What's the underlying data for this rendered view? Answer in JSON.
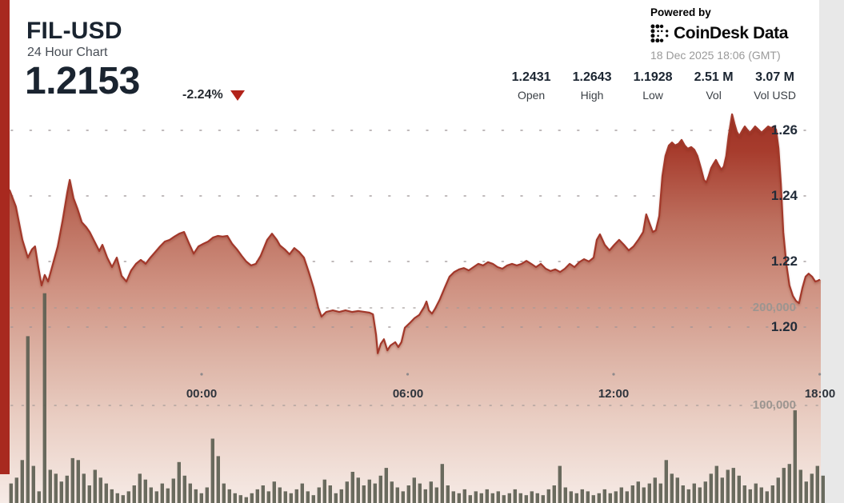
{
  "header": {
    "symbol": "FIL-USD",
    "subtitle": "24 Hour Chart",
    "price": "1.2153",
    "change": "-2.24%",
    "change_direction": "down"
  },
  "powered_by": {
    "label": "Powered by",
    "brand": "CoinDesk Data",
    "timestamp": "18 Dec 2025 18:06 (GMT)"
  },
  "stats": [
    {
      "value": "1.2431",
      "label": "Open"
    },
    {
      "value": "1.2643",
      "label": "High"
    },
    {
      "value": "1.1928",
      "label": "Low"
    },
    {
      "value": "2.51 M",
      "label": "Vol"
    },
    {
      "value": "3.07 M",
      "label": "Vol USD"
    }
  ],
  "colors": {
    "accent_red": "#a8291f",
    "line_red": "#a2372a",
    "triangle_red": "#b2231a",
    "volume_bar": "#5d6053",
    "title_navy": "#1a2430",
    "muted_gray": "#9a9a9a",
    "fill_top": "#9d3124",
    "fill_bottom": "#f6ebe6"
  },
  "chart_data": {
    "type": "area",
    "title": "FIL-USD 24 Hour Chart",
    "time_basis": "hours relative to 00:00 GMT 18 Dec 2025 (negative = 17 Dec)",
    "x_axis": {
      "ticks": [
        {
          "t": 0,
          "label": "00:00"
        },
        {
          "t": 6,
          "label": "06:00"
        },
        {
          "t": 12,
          "label": "12:00"
        },
        {
          "t": 18,
          "label": "18:00"
        }
      ],
      "range_hours": [
        -5.6,
        18.0
      ]
    },
    "y_axis_price": {
      "ticks": [
        "1.26",
        "1.24",
        "1.22",
        "1.20"
      ],
      "range": [
        1.186,
        1.268
      ],
      "grid": "dotted"
    },
    "y_axis_volume": {
      "ticks": [
        "200,000",
        "100,000"
      ],
      "tick_values": [
        200000,
        100000
      ],
      "range": [
        0,
        400000
      ]
    },
    "summary": {
      "open": 1.2431,
      "high": 1.2643,
      "low": 1.1928,
      "vol": "2.51 M",
      "vol_usd": "3.07 M",
      "last": 1.2153,
      "change_pct": -2.24
    },
    "price_series": {
      "name": "FIL-USD price",
      "points": [
        [
          -5.59,
          1.2417
        ],
        [
          -5.41,
          1.2368
        ],
        [
          -5.22,
          1.2266
        ],
        [
          -5.06,
          1.2212
        ],
        [
          -4.94,
          1.2237
        ],
        [
          -4.85,
          1.2246
        ],
        [
          -4.75,
          1.218
        ],
        [
          -4.66,
          1.2127
        ],
        [
          -4.57,
          1.2159
        ],
        [
          -4.47,
          1.2139
        ],
        [
          -4.33,
          1.2193
        ],
        [
          -4.19,
          1.2246
        ],
        [
          -4.05,
          1.2324
        ],
        [
          -3.91,
          1.2412
        ],
        [
          -3.84,
          1.2449
        ],
        [
          -3.73,
          1.2393
        ],
        [
          -3.61,
          1.2359
        ],
        [
          -3.49,
          1.232
        ],
        [
          -3.36,
          1.2305
        ],
        [
          -3.26,
          1.229
        ],
        [
          -3.12,
          1.2261
        ],
        [
          -2.98,
          1.2232
        ],
        [
          -2.89,
          1.2251
        ],
        [
          -2.75,
          1.2212
        ],
        [
          -2.61,
          1.2183
        ],
        [
          -2.47,
          1.2212
        ],
        [
          -2.33,
          1.2156
        ],
        [
          -2.19,
          1.2139
        ],
        [
          -2.05,
          1.2173
        ],
        [
          -1.91,
          1.2193
        ],
        [
          -1.77,
          1.2205
        ],
        [
          -1.63,
          1.2193
        ],
        [
          -1.49,
          1.2212
        ],
        [
          -1.35,
          1.2229
        ],
        [
          -1.21,
          1.2246
        ],
        [
          -1.07,
          1.2261
        ],
        [
          -0.93,
          1.2266
        ],
        [
          -0.79,
          1.2276
        ],
        [
          -0.65,
          1.2285
        ],
        [
          -0.51,
          1.229
        ],
        [
          -0.37,
          1.2256
        ],
        [
          -0.23,
          1.2224
        ],
        [
          -0.09,
          1.2246
        ],
        [
          0.05,
          1.2254
        ],
        [
          0.19,
          1.2261
        ],
        [
          0.33,
          1.2273
        ],
        [
          0.47,
          1.2278
        ],
        [
          0.61,
          1.2276
        ],
        [
          0.75,
          1.2278
        ],
        [
          0.89,
          1.2254
        ],
        [
          1.03,
          1.2237
        ],
        [
          1.17,
          1.2217
        ],
        [
          1.3,
          1.22
        ],
        [
          1.44,
          1.2188
        ],
        [
          1.58,
          1.2193
        ],
        [
          1.72,
          1.2217
        ],
        [
          1.91,
          1.2266
        ],
        [
          2.05,
          1.2285
        ],
        [
          2.19,
          1.2266
        ],
        [
          2.28,
          1.2249
        ],
        [
          2.42,
          1.2237
        ],
        [
          2.56,
          1.2222
        ],
        [
          2.7,
          1.2241
        ],
        [
          2.84,
          1.2229
        ],
        [
          2.98,
          1.2212
        ],
        [
          3.12,
          1.2168
        ],
        [
          3.26,
          1.212
        ],
        [
          3.4,
          1.2059
        ],
        [
          3.49,
          1.2032
        ],
        [
          3.63,
          1.2046
        ],
        [
          3.82,
          1.2051
        ],
        [
          4.01,
          1.2046
        ],
        [
          4.19,
          1.2051
        ],
        [
          4.38,
          1.2046
        ],
        [
          4.57,
          1.2049
        ],
        [
          4.75,
          1.2046
        ],
        [
          4.89,
          1.2044
        ],
        [
          4.99,
          1.2039
        ],
        [
          5.08,
          1.1978
        ],
        [
          5.13,
          1.192
        ],
        [
          5.22,
          1.1949
        ],
        [
          5.31,
          1.1963
        ],
        [
          5.41,
          1.1929
        ],
        [
          5.5,
          1.1944
        ],
        [
          5.64,
          1.1954
        ],
        [
          5.73,
          1.1939
        ],
        [
          5.82,
          1.1954
        ],
        [
          5.92,
          1.1998
        ],
        [
          6.06,
          1.2012
        ],
        [
          6.2,
          1.2027
        ],
        [
          6.34,
          1.2037
        ],
        [
          6.48,
          1.2061
        ],
        [
          6.55,
          1.2078
        ],
        [
          6.62,
          1.2051
        ],
        [
          6.71,
          1.2041
        ],
        [
          6.8,
          1.2056
        ],
        [
          6.94,
          1.2085
        ],
        [
          7.08,
          1.212
        ],
        [
          7.22,
          1.2154
        ],
        [
          7.36,
          1.2168
        ],
        [
          7.5,
          1.2176
        ],
        [
          7.64,
          1.218
        ],
        [
          7.78,
          1.2173
        ],
        [
          7.92,
          1.2183
        ],
        [
          8.06,
          1.2193
        ],
        [
          8.2,
          1.2188
        ],
        [
          8.34,
          1.2198
        ],
        [
          8.48,
          1.2193
        ],
        [
          8.62,
          1.2183
        ],
        [
          8.76,
          1.2178
        ],
        [
          8.9,
          1.2188
        ],
        [
          9.04,
          1.2193
        ],
        [
          9.18,
          1.2188
        ],
        [
          9.32,
          1.2193
        ],
        [
          9.46,
          1.2202
        ],
        [
          9.6,
          1.2193
        ],
        [
          9.74,
          1.2183
        ],
        [
          9.88,
          1.2193
        ],
        [
          10.02,
          1.2178
        ],
        [
          10.16,
          1.2171
        ],
        [
          10.3,
          1.2176
        ],
        [
          10.44,
          1.2168
        ],
        [
          10.58,
          1.2178
        ],
        [
          10.72,
          1.2193
        ],
        [
          10.86,
          1.2183
        ],
        [
          11.0,
          1.2198
        ],
        [
          11.14,
          1.2207
        ],
        [
          11.28,
          1.22
        ],
        [
          11.42,
          1.2212
        ],
        [
          11.51,
          1.2266
        ],
        [
          11.6,
          1.2283
        ],
        [
          11.74,
          1.2251
        ],
        [
          11.88,
          1.2234
        ],
        [
          12.02,
          1.2251
        ],
        [
          12.16,
          1.2266
        ],
        [
          12.3,
          1.2251
        ],
        [
          12.44,
          1.2234
        ],
        [
          12.58,
          1.2246
        ],
        [
          12.72,
          1.2266
        ],
        [
          12.86,
          1.229
        ],
        [
          12.95,
          1.2344
        ],
        [
          13.05,
          1.2315
        ],
        [
          13.14,
          1.229
        ],
        [
          13.23,
          1.2295
        ],
        [
          13.33,
          1.2339
        ],
        [
          13.42,
          1.2461
        ],
        [
          13.51,
          1.2522
        ],
        [
          13.61,
          1.2554
        ],
        [
          13.7,
          1.2563
        ],
        [
          13.79,
          1.2554
        ],
        [
          13.89,
          1.2559
        ],
        [
          13.98,
          1.2571
        ],
        [
          14.07,
          1.2554
        ],
        [
          14.16,
          1.2544
        ],
        [
          14.26,
          1.2549
        ],
        [
          14.35,
          1.2541
        ],
        [
          14.44,
          1.2522
        ],
        [
          14.54,
          1.2485
        ],
        [
          14.63,
          1.2449
        ],
        [
          14.7,
          1.2441
        ],
        [
          14.77,
          1.2461
        ],
        [
          14.84,
          1.2485
        ],
        [
          14.91,
          1.2498
        ],
        [
          14.98,
          1.251
        ],
        [
          15.05,
          1.2495
        ],
        [
          15.14,
          1.248
        ],
        [
          15.21,
          1.249
        ],
        [
          15.28,
          1.2522
        ],
        [
          15.35,
          1.2583
        ],
        [
          15.45,
          1.2649
        ],
        [
          15.52,
          1.262
        ],
        [
          15.59,
          1.2595
        ],
        [
          15.66,
          1.2583
        ],
        [
          15.75,
          1.26
        ],
        [
          15.82,
          1.2612
        ],
        [
          15.89,
          1.2602
        ],
        [
          15.96,
          1.2593
        ],
        [
          16.03,
          1.26
        ],
        [
          16.12,
          1.2612
        ],
        [
          16.22,
          1.2602
        ],
        [
          16.31,
          1.2593
        ],
        [
          16.4,
          1.2602
        ],
        [
          16.5,
          1.2612
        ],
        [
          16.59,
          1.2607
        ],
        [
          16.66,
          1.2612
        ],
        [
          16.73,
          1.2602
        ],
        [
          16.8,
          1.2546
        ],
        [
          16.87,
          1.2437
        ],
        [
          16.94,
          1.229
        ],
        [
          17.03,
          1.2193
        ],
        [
          17.12,
          1.2127
        ],
        [
          17.22,
          1.2095
        ],
        [
          17.31,
          1.208
        ],
        [
          17.4,
          1.2073
        ],
        [
          17.5,
          1.212
        ],
        [
          17.59,
          1.2154
        ],
        [
          17.68,
          1.2163
        ],
        [
          17.78,
          1.2154
        ],
        [
          17.87,
          1.2139
        ],
        [
          17.94,
          1.2141
        ],
        [
          17.99,
          1.2144
        ]
      ]
    },
    "volume_series": {
      "name": "Volume",
      "start_t": -5.55,
      "step_t": 0.1631,
      "values": [
        20000,
        26000,
        44000,
        171000,
        38000,
        12000,
        215000,
        34000,
        30000,
        22000,
        28000,
        46000,
        44000,
        30000,
        18000,
        34000,
        26000,
        20000,
        14000,
        10000,
        8000,
        12000,
        18000,
        30000,
        24000,
        16000,
        12000,
        20000,
        15000,
        25000,
        42000,
        28000,
        20000,
        14000,
        10000,
        16000,
        66000,
        48000,
        20000,
        14000,
        10000,
        8000,
        6000,
        10000,
        14000,
        18000,
        12000,
        22000,
        16000,
        12000,
        10000,
        14000,
        20000,
        12000,
        8000,
        16000,
        24000,
        18000,
        10000,
        14000,
        22000,
        32000,
        26000,
        18000,
        24000,
        20000,
        28000,
        36000,
        22000,
        16000,
        12000,
        18000,
        26000,
        20000,
        14000,
        22000,
        16000,
        40000,
        18000,
        12000,
        10000,
        14000,
        8000,
        12000,
        10000,
        14000,
        10000,
        12000,
        8000,
        10000,
        14000,
        10000,
        8000,
        12000,
        10000,
        8000,
        14000,
        18000,
        38000,
        16000,
        12000,
        10000,
        14000,
        12000,
        8000,
        10000,
        14000,
        10000,
        12000,
        16000,
        12000,
        18000,
        22000,
        16000,
        20000,
        26000,
        20000,
        44000,
        30000,
        26000,
        18000,
        14000,
        20000,
        16000,
        22000,
        30000,
        38000,
        26000,
        34000,
        36000,
        28000,
        18000,
        14000,
        20000,
        16000,
        12000,
        18000,
        26000,
        36000,
        40000,
        95000,
        34000,
        22000,
        30000,
        38000,
        28000
      ]
    }
  }
}
